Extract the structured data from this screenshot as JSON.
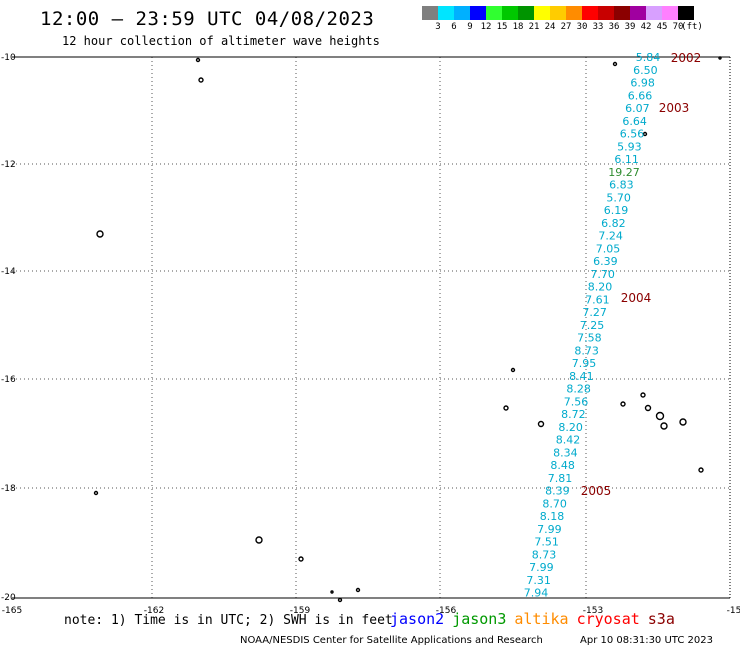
{
  "title": "12:00 — 23:59 UTC 04/08/2023",
  "subtitle": "12 hour collection of altimeter wave heights",
  "legend": {
    "colors": [
      "#7f7f7f",
      "#00e5ff",
      "#00b0ff",
      "#0000ff",
      "#30ff30",
      "#00c800",
      "#009400",
      "#ffff00",
      "#ffcc00",
      "#ff8c00",
      "#ff0000",
      "#c80000",
      "#8b0000",
      "#a000a0",
      "#d8a0ff",
      "#ff80ff",
      "#000000"
    ],
    "labels": [
      "3",
      "6",
      "9",
      "12",
      "15",
      "18",
      "21",
      "24",
      "27",
      "30",
      "33",
      "36",
      "39",
      "42",
      "45",
      "70"
    ],
    "unit": "(ft)"
  },
  "axes": {
    "lon_labels": [
      "-165",
      "-162",
      "-159",
      "-156",
      "-153",
      "-15"
    ],
    "lat_labels": [
      "-10",
      "-12",
      "-14",
      "-16",
      "-18",
      "-20"
    ]
  },
  "track": {
    "color": "#00aacc",
    "highlight_color": "#2e8b2e",
    "values": [
      "5.84",
      "6.50",
      "6.98",
      "6.66",
      "6.07",
      "6.64",
      "6.56",
      "5.93",
      "6.11",
      "19.27",
      "6.83",
      "5.70",
      "6.19",
      "6.82",
      "7.24",
      "7.05",
      "6.39",
      "7.70",
      "8.20",
      "7.61",
      "7.27",
      "7.25",
      "7.58",
      "8.73",
      "7.95",
      "8.41",
      "8.28",
      "7.56",
      "8.72",
      "8.20",
      "8.42",
      "8.34",
      "8.48",
      "7.81",
      "8.39",
      "8.70",
      "8.18",
      "7.99",
      "7.51",
      "8.73",
      "7.99",
      "7.31",
      "7.94"
    ],
    "time_labels": [
      "2002",
      "2003",
      "2004",
      "2005"
    ],
    "time_color": "#8b0000"
  },
  "note": "note: 1) Time is in UTC; 2) SWH is in feet",
  "satellites": [
    {
      "name": "jason2",
      "color": "#0000ff"
    },
    {
      "name": "jason3",
      "color": "#009900"
    },
    {
      "name": "altika",
      "color": "#ff8c00"
    },
    {
      "name": "cryosat",
      "color": "#ff0000"
    },
    {
      "name": "s3a",
      "color": "#8b0000"
    }
  ],
  "credit": "NOAA/NESDIS Center for Satellite Applications and Research",
  "timestamp": "Apr 10 08:31:30 UTC 2023"
}
